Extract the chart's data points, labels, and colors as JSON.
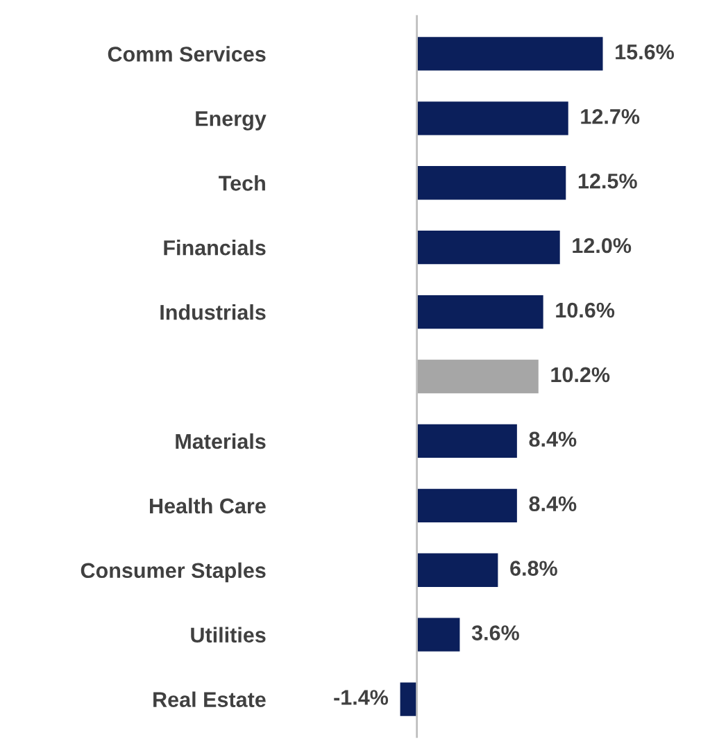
{
  "chart_data": {
    "type": "bar",
    "orientation": "horizontal",
    "categories": [
      "Comm Services",
      "Energy",
      "Tech",
      "Financials",
      "Industrials",
      null,
      "Materials",
      "Health Care",
      "Consumer Staples",
      "Utilities",
      "Real Estate"
    ],
    "values": [
      15.6,
      12.7,
      12.5,
      12.0,
      10.6,
      10.2,
      8.4,
      8.4,
      6.8,
      3.6,
      -1.4
    ],
    "colors": [
      "#0b1f5b",
      "#0b1f5b",
      "#0b1f5b",
      "#0b1f5b",
      "#0b1f5b",
      "#a6a6a6",
      "#0b1f5b",
      "#0b1f5b",
      "#0b1f5b",
      "#0b1f5b",
      "#0b1f5b"
    ],
    "value_labels": [
      "15.6%",
      "12.7%",
      "12.5%",
      "12.0%",
      "10.6%",
      "10.2%",
      "8.4%",
      "8.4%",
      "6.8%",
      "3.6%",
      "-1.4%"
    ],
    "grid": false,
    "legend": false
  }
}
